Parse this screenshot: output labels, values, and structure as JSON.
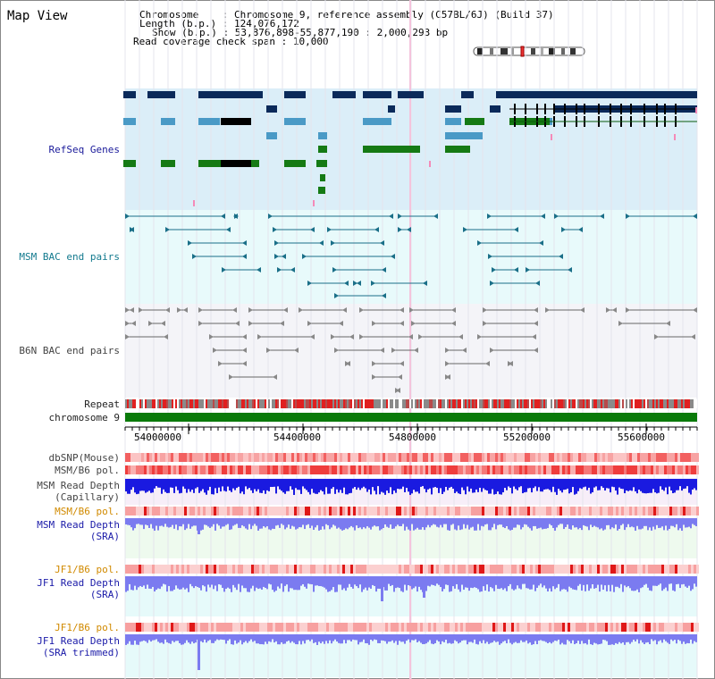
{
  "title": "Map View",
  "info": {
    "chromosome_key": "Chromosome",
    "chromosome_val": ": Chromosome 9, reference assembly (C57BL/6J) (Build 37)",
    "length_key": "Length (b.p.)",
    "length_val": ": 124,076,172",
    "show_key": "Show (b.p.)",
    "show_val": ": 53,876,898-55,877,190 : 2,000,293 bp",
    "coverage_key": "Read coverage check span",
    "coverage_val": ": 10,000"
  },
  "tracks": {
    "refseq": "RefSeq Genes",
    "msm_bac": "MSM BAC end pairs",
    "b6n_bac": "B6N BAC end pairs",
    "repeat": "Repeat",
    "chromosome": "chromosome 9",
    "dbsnp": "dbSNP(Mouse)",
    "msm_b6_pol_1": "MSM/B6 pol.",
    "msm_depth_cap_1": "MSM Read Depth",
    "msm_depth_cap_2": "(Capillary)",
    "msm_b6_pol_2": "MSM/B6 pol.",
    "msm_depth_sra_1": "MSM Read Depth",
    "msm_depth_sra_2": "(SRA)",
    "jf1_pol_1": "JF1/B6 pol.",
    "jf1_depth_sra_1": "JF1 Read Depth",
    "jf1_depth_sra_2": "(SRA)",
    "jf1_pol_2": "JF1/B6 pol.",
    "jf1_depth_trim_1": "JF1 Read Depth",
    "jf1_depth_trim_2": "(SRA trimmed)"
  },
  "axis": {
    "ticks": [
      "54000000",
      "54400000",
      "54800000",
      "55200000",
      "55600000"
    ]
  },
  "colors": {
    "refseq_bg": "#dbeef8",
    "msm_bac_bg": "#e8fafb",
    "b6n_bg": "#f4f4f8",
    "gene_navy": "#0b2a5a",
    "gene_light": "#4a9ac6",
    "gene_green": "#157a14",
    "bac_teal": "#1a6f88",
    "bac_grey": "#666666",
    "chromosome_bar": "#0a7a0a",
    "depth_blue": "#1a1ae0",
    "depth_light": "#7b7bf0"
  }
}
